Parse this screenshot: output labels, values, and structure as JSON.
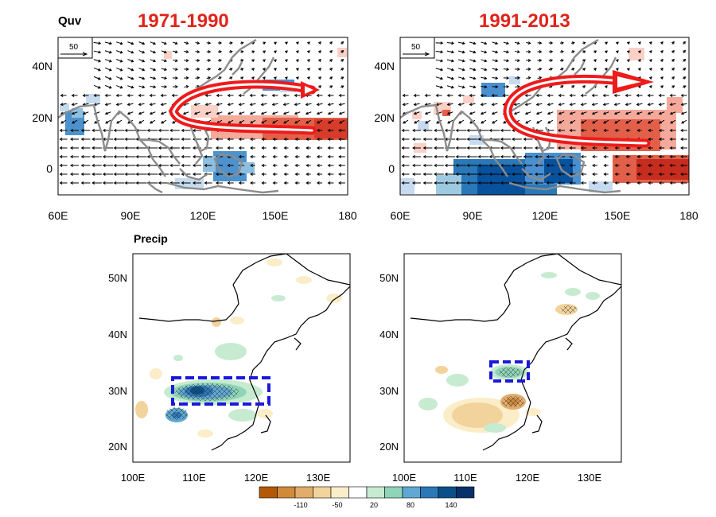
{
  "titles": {
    "quv_label": "Quv",
    "precip_label": "Precip",
    "period_left": "1971-1990",
    "period_right": "1991-2013"
  },
  "quv_axes": {
    "x_ticks": [
      "60E",
      "90E",
      "120E",
      "150E",
      "180"
    ],
    "y_ticks": [
      "40N",
      "20N",
      "0"
    ],
    "ref_vector_label": "50"
  },
  "precip_axes": {
    "x_ticks": [
      "100E",
      "110E",
      "120E",
      "130E"
    ],
    "y_ticks": [
      "50N",
      "40N",
      "30N",
      "20N"
    ]
  },
  "colorbar": {
    "labels": [
      "-110",
      "-50",
      "20",
      "80",
      "140"
    ],
    "colors": [
      "#b35806",
      "#d08a3a",
      "#e2ac6b",
      "#f2d39b",
      "#faedc8",
      "#ffffff",
      "#c7ebd0",
      "#8fd4b8",
      "#5fa8d3",
      "#2a78b8",
      "#0b4f8a",
      "#08306b"
    ]
  },
  "colors": {
    "title_red": "#e0241b",
    "arrow_red": "#ee1b1b",
    "box_blue": "#1a1adb",
    "coast_gray": "#8c8c8c",
    "pos_red": "#e2604a",
    "neg_blue": "#3a86c8"
  }
}
